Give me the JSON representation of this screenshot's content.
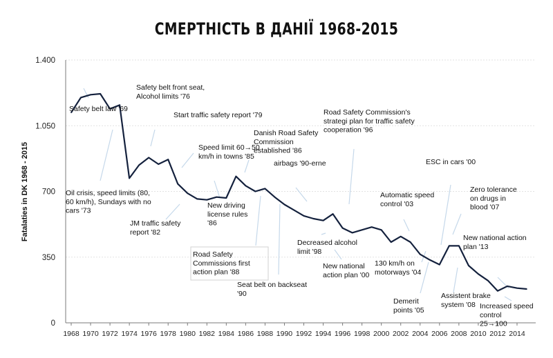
{
  "chart_data": {
    "type": "line",
    "title": "СМЕРТНІСТЬ В ДАНІЇ 1968-2015",
    "ylabel": "Fatalaties in DK 1968 - 2015",
    "xlabel": "",
    "ylim": [
      0,
      1400
    ],
    "yticks": [
      0,
      350,
      700,
      1050,
      1400
    ],
    "ytick_labels": [
      "0",
      "350",
      "700",
      "1.050",
      "1.400"
    ],
    "xlim": [
      1968,
      2015
    ],
    "xticks": [
      1968,
      1970,
      1972,
      1974,
      1976,
      1978,
      1980,
      1982,
      1984,
      1986,
      1988,
      1990,
      1992,
      1994,
      1996,
      1998,
      2000,
      2002,
      2004,
      2006,
      2008,
      2010,
      2012,
      2014
    ],
    "grid": true,
    "series": [
      {
        "color": "#14213d",
        "x": [
          1968,
          1969,
          1970,
          1971,
          1972,
          1973,
          1974,
          1975,
          1976,
          1977,
          1978,
          1979,
          1980,
          1981,
          1982,
          1983,
          1984,
          1985,
          1986,
          1987,
          1988,
          1989,
          1990,
          1991,
          1992,
          1993,
          1994,
          1995,
          1996,
          1997,
          1998,
          1999,
          2000,
          2001,
          2002,
          2003,
          2004,
          2005,
          2006,
          2007,
          2008,
          2009,
          2010,
          2011,
          2012,
          2013,
          2014,
          2015
        ],
        "y": [
          1120,
          1200,
          1215,
          1220,
          1140,
          1160,
          770,
          840,
          880,
          845,
          870,
          740,
          690,
          660,
          655,
          670,
          665,
          780,
          730,
          700,
          715,
          670,
          630,
          600,
          570,
          555,
          545,
          580,
          505,
          480,
          495,
          510,
          495,
          430,
          460,
          430,
          365,
          335,
          310,
          410,
          410,
          305,
          260,
          225,
          170,
          195,
          185,
          180
        ]
      }
    ],
    "annotations": [
      {
        "id": "ann-1969",
        "lines": [
          "Safety belt law '69"
        ]
      },
      {
        "id": "ann-1973",
        "lines": [
          "Oil crisis, speed limits (80,",
          "60 km/h), Sundays with no",
          "cars '73"
        ]
      },
      {
        "id": "ann-1976",
        "lines": [
          "Safety belt front seat,",
          "Alcohol limits '76"
        ]
      },
      {
        "id": "ann-1979",
        "lines": [
          "Start traffic safety report '79"
        ]
      },
      {
        "id": "ann-1982",
        "lines": [
          "JM traffic safety",
          "report '82"
        ]
      },
      {
        "id": "ann-1985",
        "lines": [
          "Speed limit 60→50",
          "km/h in towns '85"
        ]
      },
      {
        "id": "ann-1986a",
        "lines": [
          "New driving",
          "license rules",
          "'86"
        ]
      },
      {
        "id": "ann-1986b",
        "lines": [
          "Danish Road Safety",
          "Commission",
          "established '86"
        ]
      },
      {
        "id": "ann-1988",
        "lines": [
          "Road Safety",
          "Commissions first",
          "action plan '88"
        ]
      },
      {
        "id": "ann-1990a",
        "lines": [
          "airbags '90-erne"
        ]
      },
      {
        "id": "ann-1990b",
        "lines": [
          "Seat belt on backseat",
          "'90"
        ]
      },
      {
        "id": "ann-1996",
        "lines": [
          "Road Safety Commission's",
          "strategi plan for traffic safety",
          "cooperation '96"
        ]
      },
      {
        "id": "ann-1998",
        "lines": [
          "Decreased alcohol",
          "limit '98"
        ]
      },
      {
        "id": "ann-2000",
        "lines": [
          "New national",
          "action plan '00"
        ]
      },
      {
        "id": "ann-2003",
        "lines": [
          "Automatic speed",
          "control '03"
        ]
      },
      {
        "id": "ann-2004",
        "lines": [
          "130 km/h on",
          "motorways '04"
        ]
      },
      {
        "id": "ann-2005",
        "lines": [
          "Demerit",
          "points '05"
        ]
      },
      {
        "id": "ann-2007",
        "lines": [
          "ESC in cars '00"
        ]
      },
      {
        "id": "ann-2008",
        "lines": [
          "Assistent brake",
          "system '08"
        ]
      },
      {
        "id": "ann-2007b",
        "lines": [
          "Zero tolerance",
          "on drugs in",
          "blood '07"
        ]
      },
      {
        "id": "ann-2013",
        "lines": [
          "New national action",
          "plan '13"
        ]
      },
      {
        "id": "ann-2014",
        "lines": [
          "Increased speed",
          "control",
          "25→100"
        ]
      }
    ]
  }
}
